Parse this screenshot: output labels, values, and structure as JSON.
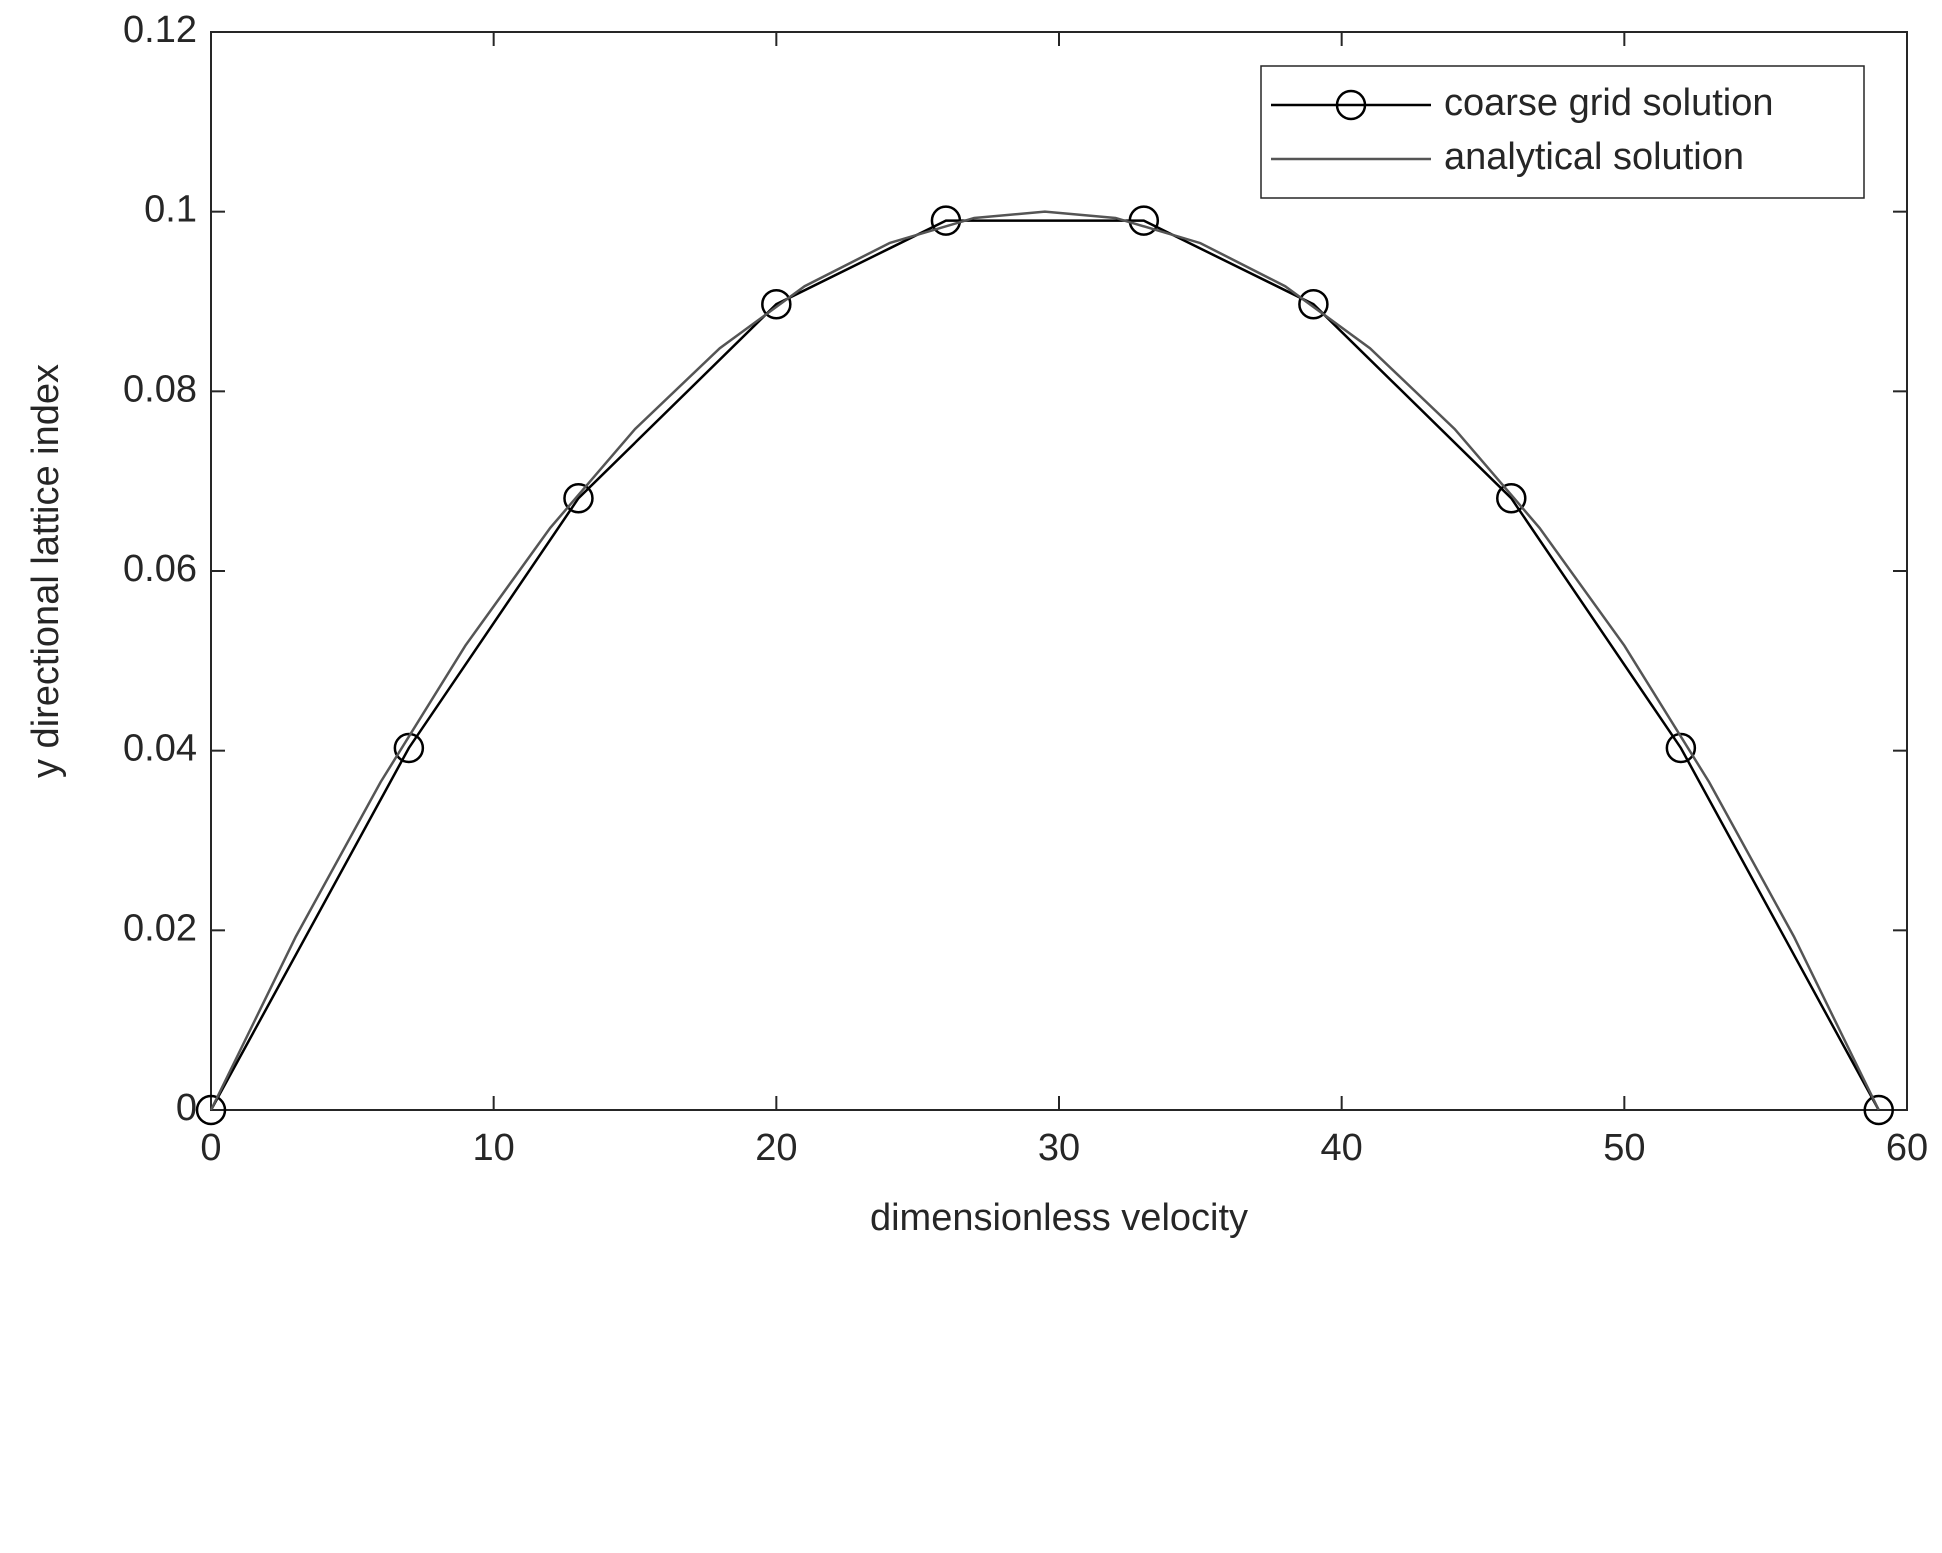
{
  "chart_data": {
    "type": "line",
    "xlabel": "dimensionless velocity",
    "ylabel": "y directional lattice index",
    "xlim": [
      0,
      60
    ],
    "xticks": [
      0,
      10,
      20,
      30,
      40,
      50,
      60
    ],
    "ylim": [
      0,
      0.12
    ],
    "yticks": [
      0,
      0.02,
      0.04,
      0.06,
      0.08,
      0.1,
      0.12
    ],
    "legend": "northeast",
    "grid": false,
    "series": [
      {
        "name": "coarse grid solution",
        "color": "#000000",
        "marker": "circle",
        "x": [
          0,
          7,
          13,
          20,
          26,
          33,
          39,
          46,
          52,
          59
        ],
        "values": [
          0,
          0.0403,
          0.0681,
          0.0897,
          0.099,
          0.099,
          0.0897,
          0.0681,
          0.0403,
          0
        ]
      },
      {
        "name": "analytical solution",
        "color": "#555555",
        "marker": "none",
        "x": [
          0,
          3,
          6,
          9,
          12,
          15,
          18,
          21,
          24,
          27,
          29.5,
          32,
          35,
          38,
          41,
          44,
          47,
          50,
          53,
          56,
          59
        ],
        "values": [
          0,
          0.0193,
          0.0365,
          0.0517,
          0.0648,
          0.0758,
          0.0848,
          0.0917,
          0.0965,
          0.0993,
          0.1,
          0.0993,
          0.0965,
          0.0917,
          0.0848,
          0.0758,
          0.0648,
          0.0517,
          0.0365,
          0.0193,
          0
        ]
      }
    ]
  }
}
